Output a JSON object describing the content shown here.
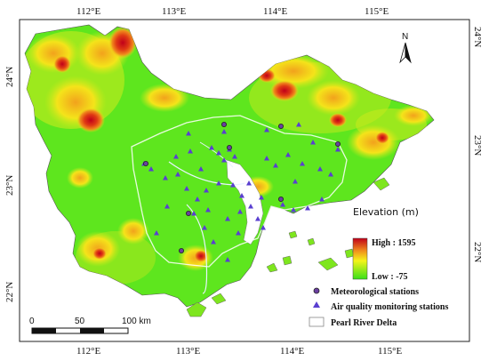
{
  "map": {
    "graticule": {
      "top_labels": [
        "112°E",
        "113°E",
        "114°E",
        "115°E"
      ],
      "bottom_labels": [
        "112°E",
        "113°E",
        "114°E",
        "115°E"
      ],
      "left_labels": [
        "24°N",
        "23°N",
        "22°N"
      ],
      "right_labels": [
        "24°N",
        "23°N",
        "22°N"
      ]
    },
    "north_arrow": {
      "label": "N"
    },
    "legend": {
      "title": "Elevation (m)",
      "high_label": "High : 1595",
      "low_label": "Low : -75",
      "colors": {
        "high": "#c0001a",
        "mid_high": "#f08c1c",
        "mid": "#f4f41a",
        "low": "#38e01a"
      },
      "items": [
        {
          "label": "Meteorological stations",
          "icon": "circle-marker-icon",
          "color": "#6a3fa0"
        },
        {
          "label": "Air quality monitoring stations",
          "icon": "triangle-marker-icon",
          "color": "#5a3fd0"
        },
        {
          "label": "Pearl River Delta",
          "icon": "outline-box-icon",
          "color": "#888888"
        }
      ]
    },
    "scale_bar": {
      "labels": [
        "0",
        "50",
        "100 km"
      ]
    }
  }
}
